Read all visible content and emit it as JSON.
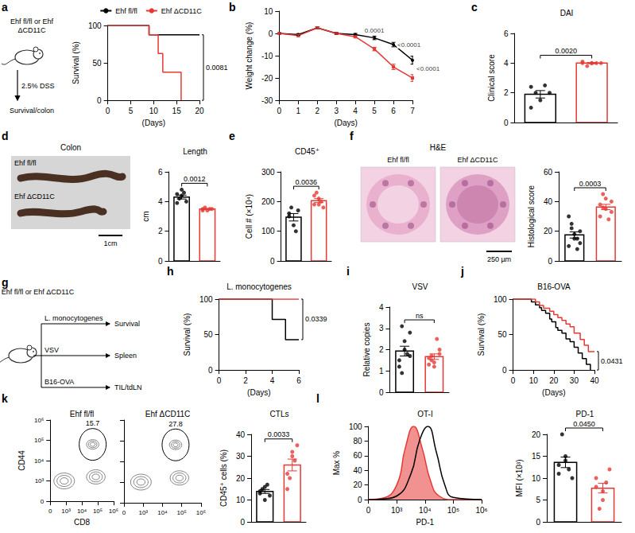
{
  "chart_data": [
    {
      "panel": "a",
      "type": "line",
      "line_style": "step",
      "xlabel": "(Days)",
      "ylabel": "Survival (%)",
      "xlim": [
        0,
        20
      ],
      "xticks": [
        0,
        5,
        10,
        15,
        20
      ],
      "ylim": [
        0,
        100
      ],
      "yticks": [
        0,
        50,
        100
      ],
      "grid": false,
      "legend": "top",
      "series": [
        {
          "name": "Ehf fl/fl",
          "color": "#000000",
          "x": [
            0,
            9,
            20
          ],
          "values": [
            100,
            87.5,
            87.5
          ]
        },
        {
          "name": "Ehf ΔCD11C",
          "color": "#e53935",
          "x": [
            0,
            9,
            11,
            12,
            16
          ],
          "values": [
            100,
            87.5,
            62.5,
            37.5,
            0
          ]
        }
      ],
      "annotations": [
        {
          "text": "0.0081"
        }
      ]
    },
    {
      "panel": "b",
      "type": "line",
      "marker": "circle",
      "xlabel": "(Days)",
      "ylabel": "Weight change (%)",
      "xlim": [
        0,
        7
      ],
      "xticks": [
        0,
        1,
        2,
        3,
        4,
        5,
        6,
        7
      ],
      "ylim": [
        -30,
        10
      ],
      "yticks": [
        -30,
        -20,
        -10,
        0,
        10
      ],
      "grid": false,
      "series": [
        {
          "color": "#000000",
          "marker": "circle",
          "x": [
            0,
            1,
            2,
            3,
            4,
            5,
            6,
            7
          ],
          "values": [
            0,
            -0.5,
            2.5,
            0,
            -0.5,
            -2,
            -5,
            -12
          ],
          "errors": [
            0.3,
            0.4,
            0.5,
            0.4,
            0.5,
            0.8,
            1,
            1.8
          ]
        },
        {
          "color": "#e53935",
          "marker": "rect",
          "x": [
            0,
            1,
            2,
            3,
            4,
            5,
            6,
            7
          ],
          "values": [
            0,
            -1,
            2.5,
            0,
            -1.5,
            -7,
            -15,
            -20
          ],
          "errors": [
            0.3,
            0.4,
            0.5,
            0.4,
            0.5,
            0.8,
            1.2,
            1.5
          ]
        }
      ],
      "annotations": [
        {
          "x": 5,
          "text": "0.0001"
        },
        {
          "x": 6,
          "text": "<0.0001"
        },
        {
          "x": 7,
          "text": "<0.0001"
        }
      ]
    },
    {
      "panel": "c",
      "type": "bar",
      "title": "DAI",
      "ylabel": "Clinical score",
      "categories": [
        null,
        null
      ],
      "values": [
        1.9,
        4.0
      ],
      "errors": [
        0.25,
        0.04
      ],
      "points": [
        [
          1,
          1.5,
          2,
          2,
          2.5,
          2.4
        ],
        [
          4,
          4,
          4,
          3.8,
          4,
          4.1,
          4
        ]
      ],
      "colors": [
        "#000000",
        "#e53935"
      ],
      "marker": "circle",
      "ylim": [
        0,
        6
      ],
      "yticks": [
        0,
        2,
        4,
        6
      ],
      "grid": false,
      "tick_labels": "y",
      "annotations": [
        {
          "text": "0.0020"
        }
      ]
    },
    {
      "panel": "d",
      "type": "bar",
      "title": "Length",
      "ylabel": "cm",
      "categories": [
        null,
        null
      ],
      "values": [
        4.3,
        3.5
      ],
      "errors": [
        0.13,
        0.03
      ],
      "points": [
        [
          4.5,
          4.8,
          4.0,
          4.2,
          4.6,
          3.9,
          4.4
        ],
        [
          3.5,
          3.4,
          3.5,
          3.6,
          3.5,
          3.4
        ]
      ],
      "colors": [
        "#000000",
        "#e53935"
      ],
      "marker": "circle",
      "ylim": [
        0,
        6
      ],
      "yticks": [
        0,
        2,
        4,
        6
      ],
      "grid": false,
      "tick_labels": "y",
      "annotations": [
        {
          "text": "0.0012"
        }
      ]
    },
    {
      "panel": "e",
      "type": "bar",
      "title": "CD45⁺",
      "ylabel": "Cell # (×10⁴)",
      "categories": [
        null,
        null
      ],
      "values": [
        147,
        203
      ],
      "errors": [
        12.5,
        6.6
      ],
      "points": [
        [
          150,
          120,
          170,
          180,
          100,
          160
        ],
        [
          190,
          210,
          180,
          230,
          200,
          220,
          190
        ]
      ],
      "colors": [
        "#000000",
        "#e53935"
      ],
      "marker": "circle",
      "ylim": [
        0,
        300
      ],
      "yticks": [
        0,
        100,
        200,
        300
      ],
      "grid": false,
      "tick_labels": "y",
      "annotations": [
        {
          "text": "0.0036"
        }
      ]
    },
    {
      "panel": "f",
      "type": "bar",
      "ylabel": "Histological score",
      "categories": [
        null,
        null
      ],
      "values": [
        17.5,
        36.3
      ],
      "errors": [
        2.1,
        1.8
      ],
      "points": [
        [
          10,
          15,
          20,
          25,
          8,
          30,
          18,
          12,
          22,
          15
        ],
        [
          30,
          35,
          40,
          45,
          28,
          38,
          42,
          33,
          36
        ]
      ],
      "colors": [
        "#000000",
        "#e53935"
      ],
      "marker": "circle",
      "ylim": [
        0,
        60
      ],
      "yticks": [
        0,
        20,
        40,
        60
      ],
      "grid": false,
      "tick_labels": "y",
      "annotations": [
        {
          "text": "0.0003"
        }
      ]
    },
    {
      "panel": "h",
      "type": "line",
      "line_style": "step",
      "title": "L. monocytogenes",
      "xlabel": "(Days)",
      "ylabel": "Survival (%)",
      "xlim": [
        0,
        6
      ],
      "xticks": [
        0,
        2,
        4,
        6
      ],
      "ylim": [
        0,
        100
      ],
      "yticks": [
        0,
        50,
        100
      ],
      "grid": false,
      "series": [
        {
          "color": "#000000",
          "x": [
            0,
            4,
            5,
            6
          ],
          "values": [
            100,
            71.4,
            42.9,
            42.9
          ]
        },
        {
          "color": "#e53935",
          "x": [
            0,
            6
          ],
          "values": [
            100,
            100
          ]
        }
      ],
      "annotations": [
        {
          "text": "0.0339"
        }
      ]
    },
    {
      "panel": "i",
      "type": "bar",
      "title": "VSV",
      "ylabel": "Relative copies",
      "categories": [
        null,
        null
      ],
      "values": [
        1.93,
        1.67
      ],
      "errors": [
        0.23,
        0.13
      ],
      "points": [
        [
          1.5,
          2.0,
          2.8,
          3.1,
          1.8,
          1.2,
          2.4,
          1.7,
          0.9
        ],
        [
          1.6,
          1.4,
          2.0,
          1.7,
          2.5,
          1.3,
          1.2,
          1.8,
          1.5
        ]
      ],
      "colors": [
        "#000000",
        "#e53935"
      ],
      "marker": "circle",
      "ylim": [
        0,
        4
      ],
      "yticks": [
        0,
        1,
        2,
        3,
        4
      ],
      "grid": false,
      "tick_labels": "y",
      "annotations": [
        {
          "text": "ns"
        }
      ]
    },
    {
      "panel": "j",
      "type": "line",
      "line_style": "step",
      "title": "B16-OVA",
      "xlabel": "(Days)",
      "ylabel": "Survival (%)",
      "xlim": [
        0,
        40
      ],
      "xticks": [
        0,
        10,
        20,
        30,
        40
      ],
      "ylim": [
        0,
        100
      ],
      "yticks": [
        0,
        50,
        100
      ],
      "grid": false,
      "series": [
        {
          "color": "#000000",
          "x": [
            0,
            9,
            11,
            13,
            14,
            16,
            18,
            19,
            21,
            22,
            24,
            26,
            28,
            30,
            32,
            34,
            36,
            38
          ],
          "values": [
            100,
            96,
            92,
            88,
            84,
            80,
            72,
            68,
            60,
            56,
            52,
            44,
            40,
            32,
            24,
            16,
            8,
            0
          ]
        },
        {
          "color": "#e53935",
          "x": [
            0,
            11,
            13,
            15,
            18,
            20,
            22,
            24,
            26,
            28,
            30,
            33,
            35,
            37,
            40
          ],
          "values": [
            100,
            96,
            91,
            87,
            83,
            78,
            74,
            70,
            65,
            61,
            52,
            43,
            35,
            26,
            26
          ]
        }
      ],
      "annotations": [
        {
          "text": "0.0431"
        }
      ]
    },
    {
      "panel": "k",
      "type": "contour",
      "title": "Ehf fl/fl",
      "xlabel": "CD8",
      "ylabel": "CD44",
      "xlim": [
        0,
        4
      ],
      "xticks": [
        {
          "value": 0,
          "label": "0"
        },
        {
          "value": 1,
          "label": "10³"
        },
        {
          "value": 2,
          "label": "10⁴"
        },
        {
          "value": 3,
          "label": "10⁵"
        },
        {
          "value": 4,
          "label": "10⁶"
        }
      ],
      "ylim": [
        0,
        4
      ],
      "yticks": [
        {
          "value": 0,
          "label": "0"
        },
        {
          "value": 1,
          "label": "10³"
        },
        {
          "value": 2,
          "label": "10⁴"
        },
        {
          "value": 3,
          "label": "10⁵"
        },
        {
          "value": 4,
          "label": "10⁶"
        }
      ],
      "grid": false,
      "tick_labels": true,
      "annotations": [
        {
          "text": "15.7"
        }
      ]
    },
    {
      "panel": "k",
      "type": "contour",
      "title": "Ehf ΔCD11C",
      "xlim": [
        0,
        4
      ],
      "xticks": [
        {
          "value": 0,
          "label": "0"
        },
        {
          "value": 1,
          "label": "10³"
        },
        {
          "value": 2,
          "label": "10⁴"
        },
        {
          "value": 3,
          "label": "10⁵"
        },
        {
          "value": 4,
          "label": "10⁶"
        }
      ],
      "ylim": [
        0,
        4
      ],
      "yticks": [
        {
          "value": 0,
          "label": "0"
        },
        {
          "value": 1,
          "label": "10³"
        },
        {
          "value": 2,
          "label": "10⁴"
        },
        {
          "value": 3,
          "label": "10⁵"
        },
        {
          "value": 4,
          "label": "10⁶"
        }
      ],
      "grid": false,
      "tick_labels": "x",
      "annotations": [
        {
          "text": "27.8"
        }
      ]
    },
    {
      "panel": "k",
      "type": "bar",
      "title": "CTLs",
      "ylabel": "CD45⁺ cells (%)",
      "categories": [
        null,
        null
      ],
      "values": [
        13.9,
        26
      ],
      "errors": [
        0.9,
        2.7
      ],
      "points": [
        [
          13,
          10,
          12,
          15,
          17,
          14,
          16
        ],
        [
          22,
          30,
          35,
          20,
          28,
          15,
          32
        ]
      ],
      "colors": [
        "#000000",
        "#e53935"
      ],
      "marker": "circle",
      "ylim": [
        0,
        40
      ],
      "yticks": [
        0,
        10,
        20,
        30,
        40
      ],
      "grid": false,
      "tick_labels": "y",
      "annotations": [
        {
          "text": "0.0033"
        }
      ]
    },
    {
      "panel": "l",
      "type": "line",
      "line_style": "smooth",
      "title": "OT-I",
      "xlabel": "PD-1",
      "ylabel": "Max %",
      "xlim": [
        0,
        4
      ],
      "xticks": [
        {
          "value": 0,
          "label": "0"
        },
        {
          "value": 1,
          "label": "10³"
        },
        {
          "value": 2,
          "label": "10⁴"
        },
        {
          "value": 3,
          "label": "10⁵"
        },
        {
          "value": 4,
          "label": "10⁶"
        }
      ],
      "ylim": [
        0,
        100
      ],
      "yticks": [
        0,
        20,
        40,
        60,
        80,
        100
      ],
      "grid": false,
      "series": [
        {
          "type": "area",
          "color": "#e53935",
          "x": [
            0,
            0.5,
            1,
            1.3,
            1.6,
            1.9,
            2.2,
            2.5,
            3,
            4
          ],
          "values": [
            0,
            2,
            20,
            70,
            100,
            70,
            25,
            5,
            0,
            0
          ]
        },
        {
          "type": "line",
          "color": "#000000",
          "x": [
            0,
            0.5,
            1,
            1.5,
            1.8,
            2.1,
            2.4,
            2.7,
            3,
            4
          ],
          "values": [
            0,
            1,
            5,
            35,
            80,
            100,
            65,
            20,
            3,
            0
          ]
        }
      ]
    },
    {
      "panel": "l",
      "type": "bar",
      "title": "PD-1",
      "ylabel": "MFI (×10³)",
      "categories": [
        null,
        null
      ],
      "values": [
        13.6,
        7.7
      ],
      "errors": [
        1.2,
        1.1
      ],
      "points": [
        [
          13,
          15,
          10,
          20,
          12,
          11,
          14
        ],
        [
          8,
          5,
          12,
          3,
          9,
          10,
          7
        ]
      ],
      "colors": [
        "#000000",
        "#e53935"
      ],
      "marker": "circle",
      "ylim": [
        0,
        20
      ],
      "yticks": [
        0,
        5,
        10,
        15,
        20
      ],
      "grid": false,
      "tick_labels": "y",
      "annotations": [
        {
          "text": "0.0450"
        }
      ]
    }
  ],
  "schematics": [
    {
      "panel": "a",
      "mice": "Ehf fl/fl or Ehf ΔCD11C",
      "treatment": "2.5% DSS",
      "readout": "Survival/colon"
    },
    {
      "panel": "g",
      "mice": "Ehf fl/fl or Ehf ΔCD11C",
      "arms": [
        {
          "treatment": "L. monocytogenes",
          "readout": "Survival"
        },
        {
          "treatment": "VSV",
          "readout": "Spleen"
        },
        {
          "treatment": "B16-OVA",
          "readout": "TIL/tdLN"
        }
      ]
    }
  ],
  "images": [
    {
      "panel": "d",
      "title": "Colon",
      "labels": [
        "Ehf fl/fl",
        "Ehf ΔCD11C"
      ],
      "scale_bar": "1cm"
    },
    {
      "panel": "f",
      "title": "H&E",
      "labels": [
        "Ehf fl/fl",
        "Ehf ΔCD11C"
      ],
      "scale_bar": "250 µm"
    }
  ]
}
